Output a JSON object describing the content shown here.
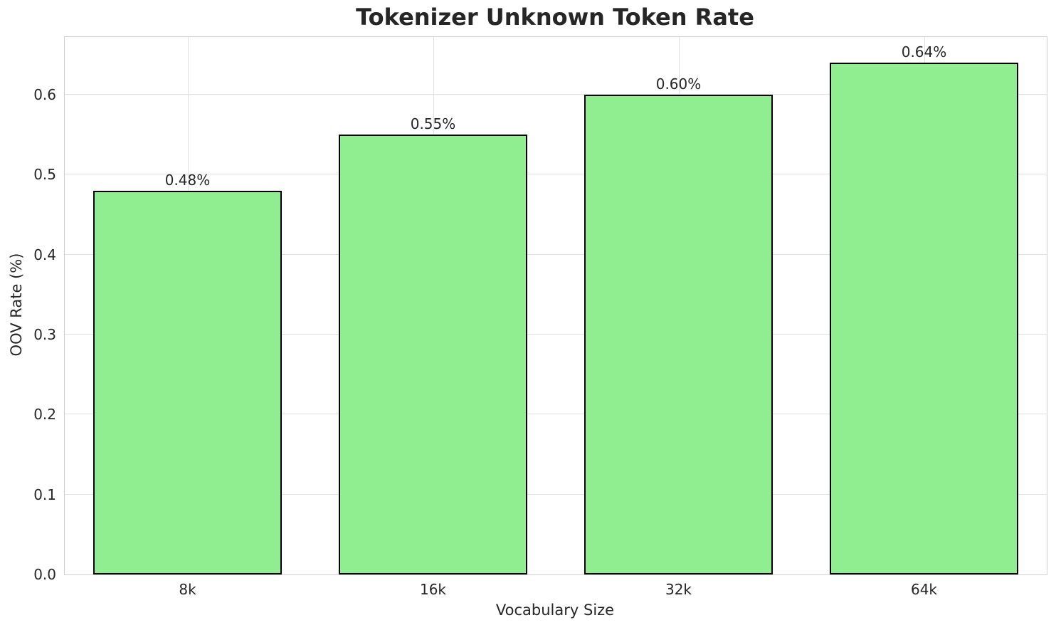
{
  "chart_data": {
    "type": "bar",
    "title": "Tokenizer Unknown Token Rate",
    "xlabel": "Vocabulary Size",
    "ylabel": "OOV Rate (%)",
    "categories": [
      "8k",
      "16k",
      "32k",
      "64k"
    ],
    "values": [
      0.48,
      0.55,
      0.6,
      0.64
    ],
    "bar_labels": [
      "0.48%",
      "0.55%",
      "0.60%",
      "0.64%"
    ],
    "ylim": [
      0,
      0.672
    ],
    "yticks": [
      0.0,
      0.1,
      0.2,
      0.3,
      0.4,
      0.5,
      0.6
    ],
    "ytick_labels": [
      "0.0",
      "0.1",
      "0.2",
      "0.3",
      "0.4",
      "0.5",
      "0.6"
    ],
    "grid": true,
    "legend": "none",
    "colors": {
      "bar_fill": "#90ee90",
      "bar_edge": "#000000",
      "grid": "#e2e2e2",
      "spine": "#d0d0d0",
      "text": "#262626",
      "background": "#ffffff"
    }
  }
}
